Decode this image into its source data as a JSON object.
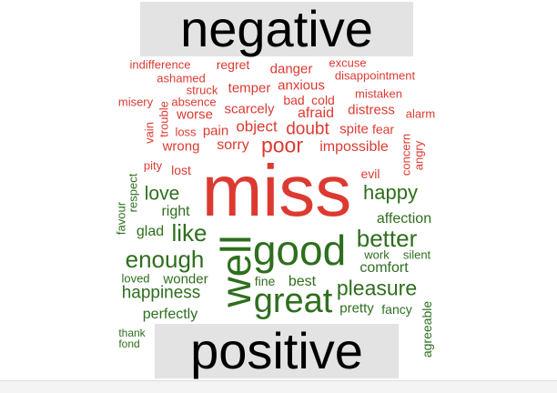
{
  "chart_data": {
    "type": "comparison word cloud",
    "groups": [
      {
        "name": "negative",
        "color": "#dc3a31",
        "words": [
          "miss",
          "poor",
          "doubt",
          "impossible",
          "sorry",
          "afraid",
          "object",
          "pain",
          "wrong",
          "scarcely",
          "worse",
          "temper",
          "anxious",
          "danger",
          "bad",
          "cold",
          "distress",
          "spite",
          "fear",
          "regret",
          "excuse",
          "indifference",
          "ashamed",
          "struck",
          "absence",
          "misery",
          "disappointment",
          "mistaken",
          "alarm",
          "vain",
          "trouble",
          "loss",
          "pity",
          "lost",
          "evil",
          "concern",
          "angry"
        ]
      },
      {
        "name": "positive",
        "color": "#2e6e1e",
        "words": [
          "good",
          "well",
          "great",
          "better",
          "like",
          "enough",
          "pleasure",
          "love",
          "happy",
          "happiness",
          "affection",
          "comfort",
          "best",
          "right",
          "glad",
          "fine",
          "wonder",
          "pretty",
          "perfectly",
          "fancy",
          "work",
          "silent",
          "loved",
          "respect",
          "favour",
          "thank",
          "fond",
          "agreeable"
        ]
      }
    ]
  }
}
